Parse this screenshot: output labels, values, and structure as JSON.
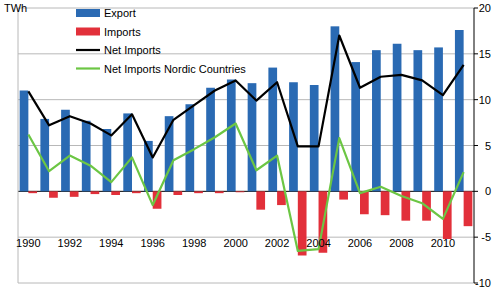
{
  "chart_data": {
    "type": "bar",
    "y_label": "TWh",
    "categories": [
      "1990",
      null,
      "1992",
      null,
      "1994",
      null,
      "1996",
      null,
      "1998",
      null,
      "2000",
      null,
      "2002",
      null,
      "2004",
      null,
      "2006",
      null,
      "2008",
      null,
      "2010",
      null
    ],
    "series": [
      {
        "name": "Export",
        "type": "bar",
        "color": "#2a6ab3",
        "values": [
          11.0,
          7.9,
          8.9,
          7.7,
          6.8,
          8.5,
          5.5,
          8.2,
          9.5,
          11.3,
          12.2,
          11.8,
          13.5,
          11.9,
          11.6,
          18.0,
          14.1,
          15.4,
          16.1,
          15.4,
          15.7,
          17.6
        ]
      },
      {
        "name": "Imports",
        "type": "bar",
        "color": "#e2303a",
        "values": [
          -0.2,
          -0.7,
          -0.6,
          -0.3,
          -0.4,
          -0.2,
          -1.9,
          -0.4,
          -0.2,
          -0.2,
          -0.1,
          -2.0,
          -1.5,
          -7.0,
          -6.7,
          -0.9,
          -2.5,
          -2.6,
          -3.2,
          -3.2,
          -5.2,
          -3.8
        ]
      },
      {
        "name": "Net Imports",
        "type": "line",
        "color": "#000000",
        "values": [
          10.9,
          7.2,
          8.2,
          7.4,
          6.1,
          8.4,
          3.7,
          7.8,
          9.4,
          11.0,
          12.1,
          9.9,
          11.9,
          4.9,
          4.9,
          17.0,
          11.3,
          12.5,
          12.7,
          12.1,
          10.5,
          13.8
        ]
      },
      {
        "name": "Net Imports Nordic Countries",
        "type": "line",
        "color": "#6cc644",
        "values": [
          6.2,
          2.2,
          3.9,
          2.8,
          1.0,
          3.7,
          -1.5,
          3.4,
          4.6,
          5.9,
          7.4,
          2.3,
          3.9,
          -6.5,
          -6.3,
          5.8,
          -0.2,
          0.5,
          -0.5,
          -1.3,
          -3.0,
          2.1
        ]
      }
    ],
    "ylim": [
      -10,
      20
    ],
    "yticks": [
      -10,
      -5,
      0,
      5,
      10,
      15,
      20
    ],
    "grid": true,
    "legend": "top-left"
  }
}
